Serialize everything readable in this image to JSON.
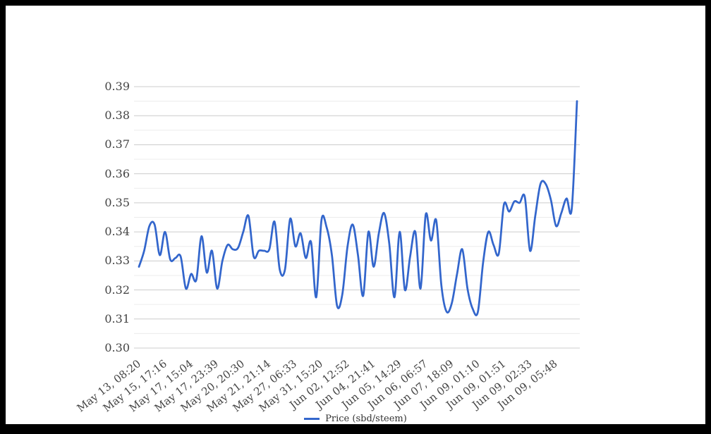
{
  "frame": {
    "border_color": "#000000",
    "background_color": "#ffffff"
  },
  "axes": {
    "text_color": "#444444",
    "major_grid_color": "#cccccc",
    "minor_grid_color": "#ececec"
  },
  "legend": {
    "position": "bottom",
    "swatch_color": "#3366cc"
  },
  "chart_data": {
    "type": "line",
    "title": "",
    "xlabel": "",
    "ylabel": "",
    "grid": true,
    "legend_position": "bottom",
    "ylim": [
      0.3,
      0.39
    ],
    "y_ticks": [
      0.3,
      0.31,
      0.32,
      0.33,
      0.34,
      0.35,
      0.36,
      0.37,
      0.38,
      0.39
    ],
    "y_minor_step": 0.005,
    "categories": [
      "May 13, 08:20",
      "May 15, 17:16",
      "May 17, 15:04",
      "May 17, 23:39",
      "May 20, 20:30",
      "May 21, 21:14",
      "May 27, 06:33",
      "May 31, 15:20",
      "Jun 02, 12:52",
      "Jun 04, 21:41",
      "Jun 05, 14:29",
      "Jun 06, 06:57",
      "Jun 07, 18:09",
      "Jun 09, 01:10",
      "Jun 09, 01:51",
      "Jun 09, 02:33",
      "Jun 09, 05:48"
    ],
    "category_tick_interval": 5,
    "series": [
      {
        "name": "Price (sbd/steem)",
        "color": "#3366cc",
        "values": [
          0.328,
          0.3335,
          0.342,
          0.3425,
          0.332,
          0.34,
          0.3305,
          0.331,
          0.3315,
          0.3205,
          0.3255,
          0.3235,
          0.3385,
          0.326,
          0.3335,
          0.3205,
          0.33,
          0.3355,
          0.334,
          0.3345,
          0.34,
          0.3455,
          0.3315,
          0.3335,
          0.3335,
          0.334,
          0.3435,
          0.327,
          0.327,
          0.3445,
          0.335,
          0.3395,
          0.331,
          0.3365,
          0.3175,
          0.344,
          0.3415,
          0.332,
          0.3145,
          0.3185,
          0.335,
          0.3425,
          0.332,
          0.318,
          0.34,
          0.328,
          0.3395,
          0.3465,
          0.336,
          0.3175,
          0.34,
          0.32,
          0.3315,
          0.34,
          0.3205,
          0.346,
          0.337,
          0.344,
          0.3215,
          0.3125,
          0.3155,
          0.3255,
          0.334,
          0.3205,
          0.3135,
          0.3125,
          0.3295,
          0.34,
          0.3355,
          0.3325,
          0.3495,
          0.347,
          0.3505,
          0.35,
          0.352,
          0.3335,
          0.3455,
          0.3565,
          0.3565,
          0.351,
          0.342,
          0.3465,
          0.3515,
          0.348,
          0.385
        ]
      }
    ]
  }
}
